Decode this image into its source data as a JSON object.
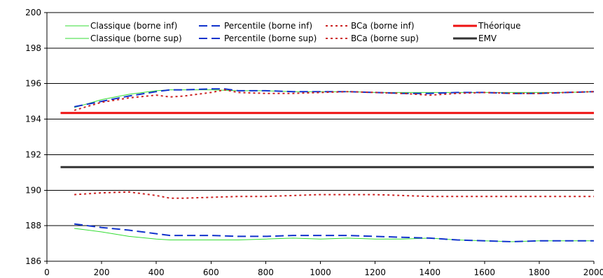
{
  "chart_data": {
    "type": "line",
    "xlim": [
      0,
      2000
    ],
    "ylim": [
      186,
      200
    ],
    "xticks": [
      0,
      200,
      400,
      600,
      800,
      1000,
      1200,
      1400,
      1600,
      1800,
      2000
    ],
    "yticks": [
      186,
      188,
      190,
      192,
      194,
      196,
      198,
      200
    ],
    "grid": "horizontal",
    "legend_position": "top",
    "series": [
      {
        "name": "Classique (borne inf)",
        "color": "#33dd33",
        "style": "solid",
        "x": [
          100,
          200,
          300,
          400,
          450,
          500,
          600,
          700,
          800,
          900,
          1000,
          1100,
          1200,
          1300,
          1400,
          1500,
          1600,
          1700,
          1800,
          1900,
          2000
        ],
        "y": [
          187.85,
          187.65,
          187.4,
          187.25,
          187.2,
          187.2,
          187.2,
          187.2,
          187.25,
          187.3,
          187.25,
          187.3,
          187.25,
          187.25,
          187.3,
          187.2,
          187.15,
          187.1,
          187.15,
          187.15,
          187.15
        ]
      },
      {
        "name": "Classique (borne sup)",
        "color": "#33dd33",
        "style": "solid",
        "x": [
          100,
          200,
          300,
          400,
          450,
          500,
          600,
          700,
          800,
          900,
          1000,
          1100,
          1200,
          1300,
          1400,
          1500,
          1600,
          1700,
          1800,
          1900,
          2000
        ],
        "y": [
          194.65,
          195.1,
          195.4,
          195.6,
          195.65,
          195.65,
          195.65,
          195.6,
          195.6,
          195.55,
          195.55,
          195.55,
          195.5,
          195.5,
          195.5,
          195.5,
          195.5,
          195.5,
          195.5,
          195.5,
          195.55
        ]
      },
      {
        "name": "Percentile (borne inf)",
        "color": "#1133cc",
        "style": "dash",
        "x": [
          100,
          200,
          300,
          400,
          450,
          500,
          600,
          700,
          800,
          900,
          1000,
          1100,
          1200,
          1300,
          1400,
          1500,
          1600,
          1700,
          1800,
          1900,
          2000
        ],
        "y": [
          188.1,
          187.9,
          187.75,
          187.55,
          187.45,
          187.45,
          187.45,
          187.4,
          187.4,
          187.45,
          187.45,
          187.45,
          187.4,
          187.35,
          187.3,
          187.2,
          187.15,
          187.1,
          187.15,
          187.15,
          187.15
        ]
      },
      {
        "name": "Percentile (borne sup)",
        "color": "#1133cc",
        "style": "dash",
        "x": [
          100,
          200,
          300,
          400,
          450,
          500,
          600,
          650,
          700,
          800,
          900,
          1000,
          1100,
          1200,
          1300,
          1400,
          1500,
          1600,
          1700,
          1800,
          1900,
          2000
        ],
        "y": [
          194.7,
          195.0,
          195.3,
          195.55,
          195.65,
          195.65,
          195.7,
          195.7,
          195.6,
          195.6,
          195.55,
          195.55,
          195.55,
          195.5,
          195.45,
          195.45,
          195.5,
          195.5,
          195.45,
          195.45,
          195.5,
          195.55
        ]
      },
      {
        "name": "BCa (borne inf)",
        "color": "#cc2222",
        "style": "dot",
        "x": [
          100,
          200,
          300,
          400,
          450,
          500,
          600,
          700,
          800,
          900,
          1000,
          1100,
          1200,
          1300,
          1400,
          1500,
          1600,
          1700,
          1800,
          1900,
          2000
        ],
        "y": [
          189.75,
          189.85,
          189.9,
          189.7,
          189.55,
          189.55,
          189.6,
          189.65,
          189.65,
          189.7,
          189.75,
          189.75,
          189.75,
          189.7,
          189.65,
          189.65,
          189.65,
          189.65,
          189.65,
          189.65,
          189.65
        ]
      },
      {
        "name": "BCa (borne sup)",
        "color": "#cc2222",
        "style": "dot",
        "x": [
          100,
          200,
          300,
          400,
          450,
          500,
          600,
          650,
          700,
          800,
          900,
          1000,
          1100,
          1200,
          1300,
          1400,
          1500,
          1600,
          1700,
          1800,
          1900,
          2000
        ],
        "y": [
          194.5,
          194.95,
          195.2,
          195.35,
          195.25,
          195.3,
          195.5,
          195.65,
          195.5,
          195.45,
          195.45,
          195.5,
          195.55,
          195.5,
          195.45,
          195.35,
          195.45,
          195.5,
          195.45,
          195.45,
          195.5,
          195.55
        ]
      },
      {
        "name": "Théorique",
        "color": "#ee1111",
        "style": "thick",
        "x": [
          50,
          2000
        ],
        "y": [
          194.35,
          194.35
        ]
      },
      {
        "name": "EMV",
        "color": "#333333",
        "style": "thick",
        "x": [
          50,
          2000
        ],
        "y": [
          191.3,
          191.3
        ]
      }
    ]
  }
}
